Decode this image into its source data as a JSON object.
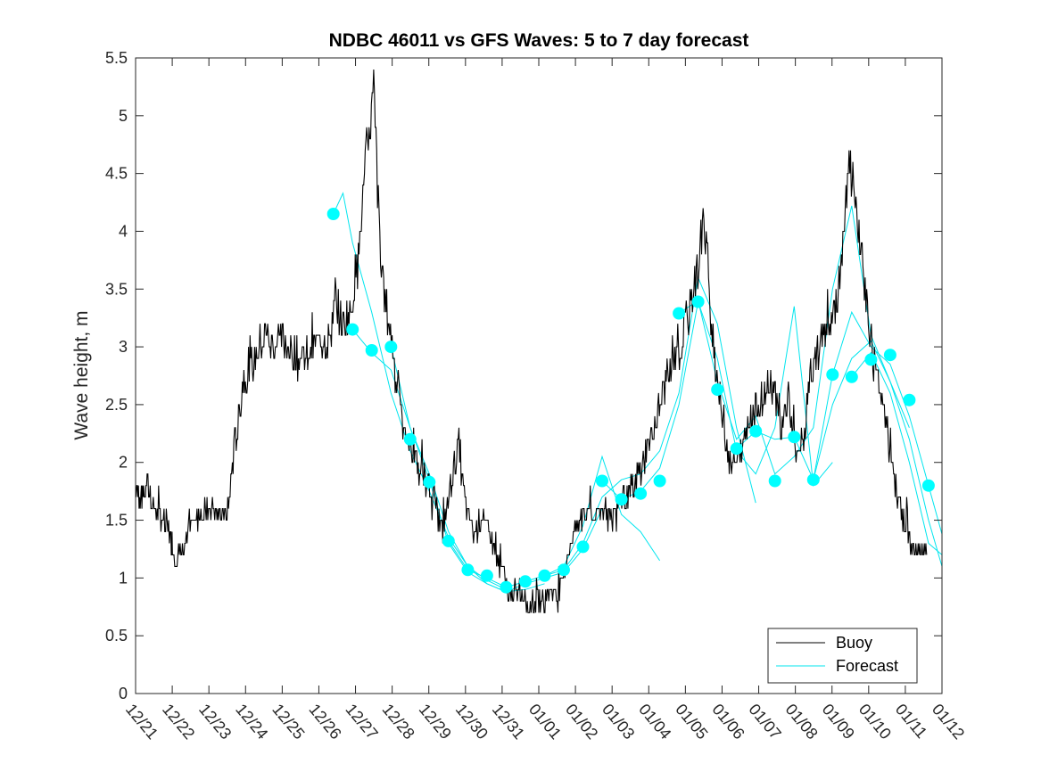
{
  "chart_data": {
    "type": "line",
    "title": "NDBC 46011 vs GFS Waves: 5 to 7 day forecast",
    "xlabel": "",
    "ylabel": "Wave height, m",
    "ylim": [
      0,
      5.5
    ],
    "xlim": [
      0,
      21
    ],
    "yticks": [
      0,
      0.5,
      1,
      1.5,
      2,
      2.5,
      3,
      3.5,
      4,
      4.5,
      5,
      5.5
    ],
    "ytick_labels": [
      "0",
      "0.5",
      "1",
      "1.5",
      "2",
      "2.5",
      "3",
      "3.5",
      "4",
      "4.5",
      "5",
      "5.5"
    ],
    "xtick_labels": [
      "12/21",
      "12/22",
      "12/23",
      "12/24",
      "12/25",
      "12/26",
      "12/27",
      "12/28",
      "12/29",
      "12/30",
      "12/31",
      "01/01",
      "01/02",
      "01/03",
      "01/04",
      "01/05",
      "01/06",
      "01/07",
      "01/08",
      "01/09",
      "01/10",
      "01/11",
      "01/12"
    ],
    "legend": {
      "location": "bottom-right",
      "entries": [
        "Buoy",
        "Forecast"
      ]
    },
    "colors": {
      "buoy": "#000000",
      "forecast": "#00e5ee",
      "points": "#00ffff",
      "axes": "#262626"
    },
    "series": [
      {
        "name": "Buoy",
        "x": [
          0,
          0.15,
          0.3,
          0.5,
          0.7,
          0.9,
          1.0,
          1.2,
          1.4,
          1.6,
          1.8,
          2.0,
          2.2,
          2.4,
          2.6,
          2.8,
          3.0,
          3.2,
          3.4,
          3.6,
          3.8,
          4.0,
          4.2,
          4.4,
          4.6,
          4.8,
          5.0,
          5.2,
          5.4,
          5.6,
          5.8,
          6.0,
          6.2,
          6.4,
          6.6,
          6.8,
          7.0,
          7.2,
          7.4,
          7.6,
          7.8,
          8.0,
          8.2,
          8.4,
          8.6,
          8.8,
          9.0,
          9.2,
          9.4,
          9.6,
          9.8,
          10.0,
          10.2,
          10.4,
          10.6,
          10.8,
          11.0,
          11.2,
          11.4,
          11.6,
          11.8,
          12.0,
          12.2,
          12.4,
          12.6,
          12.8,
          13.0,
          13.2,
          13.4,
          13.6,
          13.8,
          14.0,
          14.2,
          14.4,
          14.6,
          14.8,
          15.0,
          15.2,
          15.4,
          15.6,
          15.8,
          16.0,
          16.2,
          16.4,
          16.6,
          16.8,
          17.0,
          17.2,
          17.4,
          17.6,
          17.8,
          18.0,
          18.2,
          18.4,
          18.6,
          18.8,
          19.0,
          19.2,
          19.4,
          19.6,
          19.8,
          20.0,
          20.2,
          20.4,
          20.6
        ],
        "values": [
          1.8,
          1.7,
          1.8,
          1.6,
          1.5,
          1.4,
          1.2,
          1.2,
          1.4,
          1.5,
          1.6,
          1.6,
          1.5,
          1.6,
          2.2,
          2.7,
          2.8,
          3.0,
          3.1,
          3.0,
          3.1,
          3.0,
          2.9,
          2.9,
          3.0,
          3.1,
          3.0,
          3.4,
          3.2,
          3.3,
          3.8,
          4.6,
          5.2,
          3.6,
          3.2,
          2.7,
          2.3,
          2.1,
          1.9,
          1.8,
          1.6,
          1.4,
          1.8,
          2.1,
          1.6,
          1.4,
          1.5,
          1.4,
          1.2,
          1.0,
          0.8,
          0.9,
          0.75,
          0.8,
          0.8,
          0.9,
          0.8,
          1.1,
          1.4,
          1.5,
          1.6,
          1.5,
          1.6,
          1.5,
          1.7,
          1.7,
          1.8,
          2.0,
          2.2,
          2.4,
          2.7,
          2.8,
          3.0,
          3.3,
          3.6,
          4.1,
          3.2,
          2.6,
          2.1,
          2.0,
          2.1,
          2.4,
          2.5,
          2.6,
          2.7,
          2.3,
          2.6,
          2.0,
          2.2,
          2.8,
          3.0,
          3.2,
          3.3,
          3.8,
          4.6,
          4.0,
          3.5,
          2.9,
          2.6,
          2.2,
          1.8,
          1.5,
          1.3,
          1.2,
          1.2
        ]
      },
      {
        "name": "Forecast",
        "points": {
          "x": [
            5.15,
            5.65,
            6.15,
            6.65,
            7.15,
            7.65,
            8.15,
            8.65,
            9.15,
            9.65,
            10.15,
            10.65,
            11.15,
            11.65,
            12.15,
            12.65,
            13.15,
            13.65,
            14.15,
            14.65,
            15.15,
            15.65,
            16.15,
            16.65,
            17.15,
            17.65,
            18.15,
            18.65,
            19.15,
            19.65,
            20.15,
            20.65
          ],
          "values": [
            4.15,
            3.15,
            2.97,
            3.0,
            2.2,
            1.83,
            1.32,
            1.07,
            1.02,
            0.92,
            0.97,
            1.02,
            1.07,
            1.27,
            1.84,
            1.68,
            1.73,
            1.84,
            3.29,
            3.39,
            2.63,
            2.12,
            2.27,
            1.84,
            2.22,
            1.85,
            2.76,
            2.74,
            2.89,
            2.93,
            2.54,
            1.8
          ]
        },
        "traces": [
          {
            "x": [
              5.15,
              5.4,
              5.65,
              6.15,
              6.65,
              7.15,
              7.65,
              8.15,
              8.65,
              9.15,
              9.65
            ],
            "values": [
              4.15,
              4.33,
              3.9,
              3.3,
              2.6,
              2.1,
              1.75,
              1.35,
              1.1,
              0.98,
              0.9
            ]
          },
          {
            "x": [
              5.65,
              6.15,
              6.65,
              7.15,
              7.65,
              8.15,
              8.65,
              9.15,
              9.65,
              10.15,
              10.65
            ],
            "values": [
              3.15,
              2.95,
              2.8,
              2.3,
              1.9,
              1.4,
              1.1,
              0.95,
              0.88,
              0.9,
              0.95
            ]
          },
          {
            "x": [
              6.65,
              7.15,
              7.65,
              8.15,
              8.65,
              9.15,
              9.65,
              10.15,
              10.65,
              11.15,
              11.65,
              12.15
            ],
            "values": [
              3.0,
              2.3,
              1.85,
              1.3,
              1.05,
              0.95,
              0.88,
              0.95,
              1.0,
              1.05,
              1.25,
              1.6
            ]
          },
          {
            "x": [
              8.15,
              8.65,
              9.15,
              9.65,
              10.15,
              10.65,
              11.15,
              11.65,
              12.15,
              12.65,
              13.15,
              13.65
            ],
            "values": [
              1.32,
              1.07,
              1.0,
              0.92,
              0.97,
              1.02,
              1.1,
              1.45,
              2.05,
              1.55,
              1.4,
              1.15
            ]
          },
          {
            "x": [
              10.15,
              10.65,
              11.15,
              11.65,
              12.15,
              12.65,
              13.15,
              13.65,
              14.15,
              14.65,
              15.15,
              15.65,
              16.15
            ],
            "values": [
              0.97,
              1.02,
              1.07,
              1.3,
              1.7,
              1.85,
              1.9,
              2.1,
              2.6,
              3.6,
              3.2,
              2.3,
              1.65
            ]
          },
          {
            "x": [
              12.15,
              12.65,
              13.15,
              13.65,
              14.15,
              14.65,
              15.15,
              15.65,
              16.15,
              16.65,
              17.15,
              17.65,
              18.15
            ],
            "values": [
              1.84,
              1.68,
              1.75,
              1.95,
              2.5,
              3.39,
              2.9,
              2.1,
              1.9,
              2.3,
              3.35,
              1.8,
              2.0
            ]
          },
          {
            "x": [
              14.15,
              14.65,
              15.15,
              15.65,
              16.15,
              16.65,
              17.15,
              17.65,
              18.15,
              18.65,
              19.15,
              19.65,
              20.15
            ],
            "values": [
              3.29,
              3.4,
              2.7,
              2.2,
              2.4,
              1.9,
              2.05,
              2.3,
              3.5,
              4.22,
              3.1,
              2.7,
              2.3
            ]
          },
          {
            "x": [
              15.65,
              16.15,
              16.65,
              17.15,
              17.65,
              18.15,
              18.65,
              19.15,
              19.65,
              20.15,
              20.65,
              21.0
            ],
            "values": [
              2.12,
              2.27,
              2.2,
              2.22,
              1.85,
              2.76,
              3.3,
              3.0,
              2.85,
              2.4,
              1.8,
              1.38
            ]
          },
          {
            "x": [
              17.65,
              18.15,
              18.65,
              19.15,
              19.65,
              20.15,
              20.65,
              21.0
            ],
            "values": [
              1.85,
              2.5,
              2.9,
              3.05,
              2.7,
              2.2,
              1.5,
              1.1
            ]
          },
          {
            "x": [
              18.65,
              19.15,
              19.65,
              20.15,
              20.65,
              21.0
            ],
            "values": [
              2.74,
              2.95,
              2.6,
              2.0,
              1.3,
              1.2
            ]
          }
        ]
      }
    ]
  }
}
